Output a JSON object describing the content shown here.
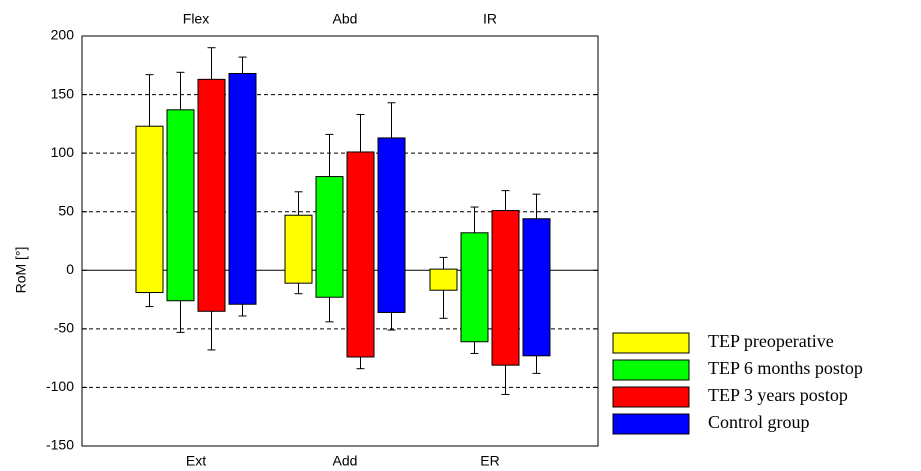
{
  "chart_data": {
    "type": "floating-bar",
    "y_label": "RoM [°]",
    "top_categories": [
      "Flex",
      "Abd",
      "IR"
    ],
    "bottom_categories": [
      "Ext",
      "Add",
      "ER"
    ],
    "ylim": [
      -150,
      200
    ],
    "yticks": [
      -150,
      -100,
      -50,
      0,
      50,
      100,
      150,
      200
    ],
    "grid": true,
    "series": [
      {
        "name": "TEP preoperative",
        "color": "#ffff00",
        "high": [
          123,
          47,
          1
        ],
        "low": [
          -19,
          -11,
          -17
        ],
        "high_error": [
          44,
          20,
          10
        ],
        "low_error": [
          12,
          9,
          24
        ]
      },
      {
        "name": "TEP 6 months postop",
        "color": "#00ff00",
        "high": [
          137,
          80,
          32
        ],
        "low": [
          -26,
          -23,
          -61
        ],
        "high_error": [
          32,
          36,
          22
        ],
        "low_error": [
          27,
          21,
          10
        ]
      },
      {
        "name": "TEP 3 years postop",
        "color": "#ff0000",
        "high": [
          163,
          101,
          51
        ],
        "low": [
          -35,
          -74,
          -81
        ],
        "high_error": [
          27,
          32,
          17
        ],
        "low_error": [
          33,
          10,
          25
        ]
      },
      {
        "name": "Control group",
        "color": "#0000ff",
        "high": [
          168,
          113,
          44
        ],
        "low": [
          -29,
          -36,
          -73
        ],
        "high_error": [
          14,
          30,
          21
        ],
        "low_error": [
          10,
          15,
          15
        ]
      }
    ]
  }
}
